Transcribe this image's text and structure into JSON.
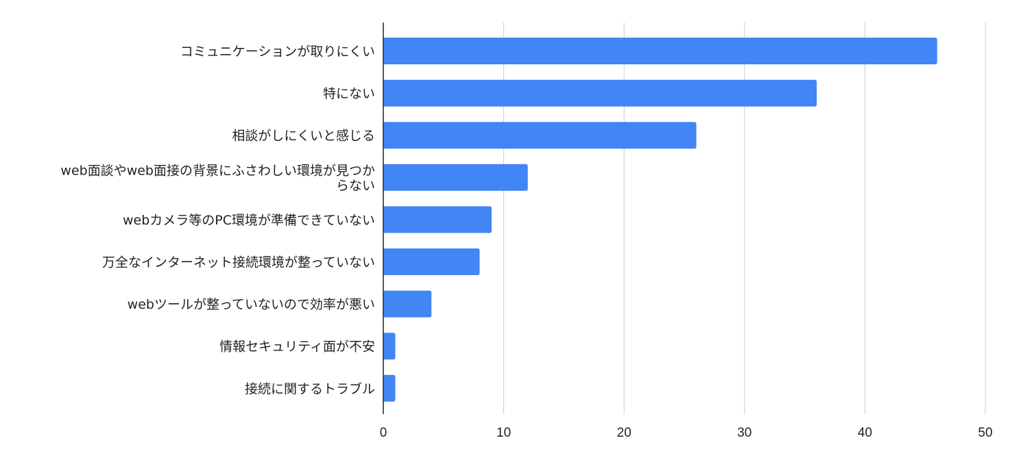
{
  "chart_data": {
    "type": "bar",
    "orientation": "horizontal",
    "categories": [
      "コミュニケーションが取りにくい",
      "特にない",
      "相談がしにくいと感じる",
      "web面談やweb面接の背景にふさわしい環境が見つからない",
      "webカメラ等のPC環境が準備できていない",
      "万全なインターネット接続環境が整っていない",
      "webツールが整っていないので効率が悪い",
      "情報セキュリティ面が不安",
      "接続に関するトラブル"
    ],
    "category_label_lines": [
      [
        "コミュニケーションが取りにくい"
      ],
      [
        "特にない"
      ],
      [
        "相談がしにくいと感じる"
      ],
      [
        "web面談やweb面接の背景にふさわしい環境が見つか",
        "らない"
      ],
      [
        "webカメラ等のPC環境が準備できていない"
      ],
      [
        "万全なインターネット接続環境が整っていない"
      ],
      [
        "webツールが整っていないので効率が悪い"
      ],
      [
        "情報セキュリティ面が不安"
      ],
      [
        "接続に関するトラブル"
      ]
    ],
    "values": [
      46,
      36,
      26,
      12,
      9,
      8,
      4,
      1,
      1
    ],
    "xlim": [
      0,
      50
    ],
    "xticks": [
      "0",
      "10",
      "20",
      "30",
      "40",
      "50"
    ],
    "grid": "vertical",
    "bar_color": "#4285f4",
    "grid_color": "#cccccc",
    "axis_color": "#222222",
    "legend": "none"
  }
}
